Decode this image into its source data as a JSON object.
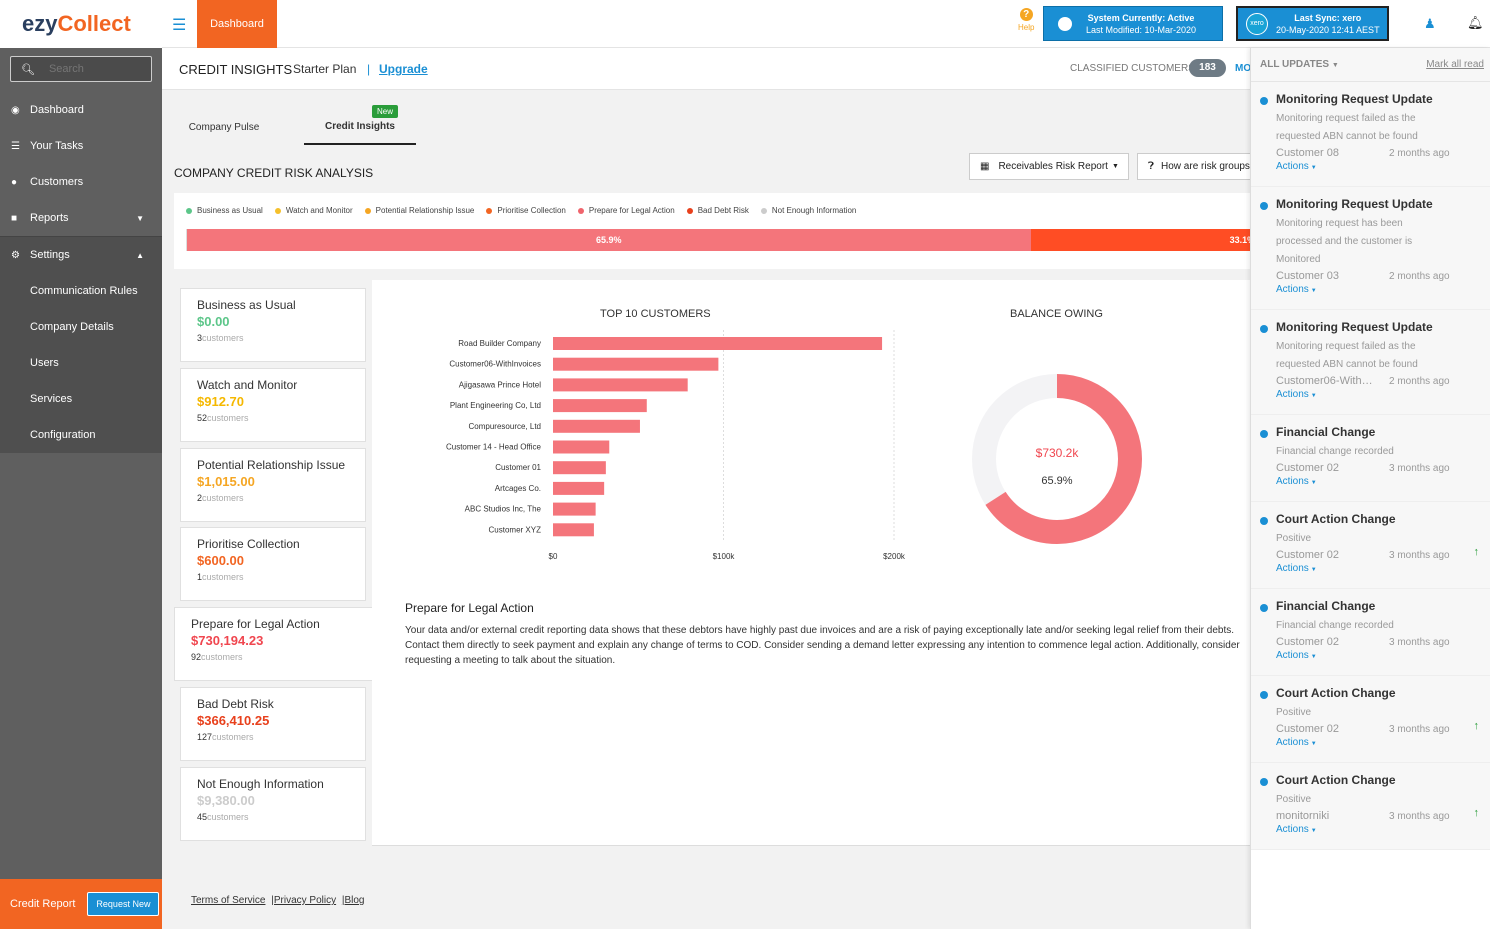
{
  "logo": {
    "part1": "ezy",
    "part2": "Collect"
  },
  "search": {
    "placeholder": "Search"
  },
  "sidebar": {
    "items": [
      {
        "label": "Dashboard",
        "icon": "dashboard-icon"
      },
      {
        "label": "Your Tasks",
        "icon": "tasks-icon"
      },
      {
        "label": "Customers",
        "icon": "customers-icon"
      },
      {
        "label": "Reports",
        "icon": "reports-icon"
      },
      {
        "label": "Settings",
        "icon": "gears-icon"
      }
    ],
    "settings_sub": [
      "Communication Rules",
      "Company Details",
      "Users",
      "Services",
      "Configuration"
    ],
    "credit_report": "Credit Report",
    "request_new": "Request New"
  },
  "topbar": {
    "dashboard_tab": "Dashboard",
    "help": "Help",
    "system_status": {
      "line1": "System Currently: Active",
      "line2": "Last Modified: 10-Mar-2020"
    },
    "sync_status": {
      "logo": "xero",
      "line1": "Last Sync: xero",
      "line2": "20-May-2020 12:41 AEST"
    }
  },
  "pagehead": {
    "title": "CREDIT INSIGHTS",
    "plan": "Starter Plan",
    "separator": "|",
    "upgrade": "Upgrade",
    "classified_label": "CLASSIFIED CUSTOMERS",
    "classified_count": "183",
    "more": "MO"
  },
  "tabs": {
    "pulse": "Company Pulse",
    "credit": "Credit Insights",
    "new_badge": "New"
  },
  "risk": {
    "title": "COMPANY CREDIT RISK ANALYSIS",
    "report_button": "Receivables Risk Report",
    "how_button": "How are risk groups",
    "legend": [
      {
        "label": "Business as Usual",
        "color": "#5cc689"
      },
      {
        "label": "Watch and Monitor",
        "color": "#f5c02b"
      },
      {
        "label": "Potential Relationship Issue",
        "color": "#f5a623"
      },
      {
        "label": "Prioritise Collection",
        "color": "#f26522"
      },
      {
        "label": "Prepare for Legal Action",
        "color": "#f0646c"
      },
      {
        "label": "Bad Debt Risk",
        "color": "#e8401c"
      },
      {
        "label": "Not Enough Information",
        "color": "#cccccc"
      }
    ],
    "bar": [
      {
        "label": "65.9%",
        "pct": 65.9,
        "color": "#f4757b"
      },
      {
        "label": "33.1%",
        "pct": 33.1,
        "color": "#ff4d24"
      }
    ]
  },
  "cards": [
    {
      "title": "Business as Usual",
      "value": "$0.00",
      "count": "3",
      "unit": "customers",
      "color": "#5cc689"
    },
    {
      "title": "Watch and Monitor",
      "value": "$912.70",
      "count": "52",
      "unit": "customers",
      "color": "#f5b800"
    },
    {
      "title": "Potential Relationship Issue",
      "value": "$1,015.00",
      "count": "2",
      "unit": "customers",
      "color": "#f5a623"
    },
    {
      "title": "Prioritise Collection",
      "value": "$600.00",
      "count": "1",
      "unit": "customers",
      "color": "#f26522"
    },
    {
      "title": "Prepare for Legal Action",
      "value": "$730,194.23",
      "count": "92",
      "unit": "customers",
      "color": "#f0464f"
    },
    {
      "title": "Bad Debt Risk",
      "value": "$366,410.25",
      "count": "127",
      "unit": "customers",
      "color": "#e8401c"
    },
    {
      "title": "Not Enough Information",
      "value": "$9,380.00",
      "count": "45",
      "unit": "customers",
      "color": "#cccccc"
    }
  ],
  "charts": {
    "top10_title": "TOP 10 CUSTOMERS",
    "balance_title": "BALANCE OWING",
    "balance_value": "$730.2k",
    "balance_pct": "65.9%"
  },
  "chart_data": [
    {
      "type": "bar",
      "orientation": "horizontal",
      "title": "TOP 10 CUSTOMERS",
      "categories": [
        "Road Builder Company",
        "Customer06-WithInvoices",
        "Ajigasawa Prince Hotel",
        "Plant Engineering Co, Ltd",
        "Compuresource, Ltd",
        "Customer 14 - Head Office",
        "Customer 01",
        "Artcages Co.",
        "ABC Studios Inc, The",
        "Customer XYZ"
      ],
      "values": [
        193000,
        97000,
        79000,
        55000,
        51000,
        33000,
        31000,
        30000,
        25000,
        24000
      ],
      "xticks": [
        "$0",
        "$100k",
        "$200k"
      ],
      "xlim": [
        0,
        200000
      ],
      "color": "#f4757b"
    },
    {
      "type": "pie",
      "title": "BALANCE OWING",
      "values": [
        65.9,
        34.1
      ],
      "colors": [
        "#f4757b",
        "#f3f3f5"
      ],
      "center_value": "$730.2k",
      "center_pct": "65.9%"
    }
  ],
  "legal": {
    "title": "Prepare for Legal Action",
    "desc": "Your data and/or external credit reporting data shows that these debtors have highly past due invoices and are a risk of paying exceptionally late and/or seeking legal relief from their debts. Contact them directly to seek payment and explain any change of terms to COD. Consider sending a demand letter expressing any intention to commence legal action. Additionally, consider requesting a meeting to talk about the situation."
  },
  "footer": {
    "terms": "Terms of Service",
    "privacy": "|Privacy Policy",
    "blog": "|Blog"
  },
  "updates": {
    "filter": "ALL UPDATES",
    "mark_all": "Mark all read",
    "items": [
      {
        "title": "Monitoring Request Update",
        "msg": "Monitoring request failed as the requested ABN cannot be found",
        "cust": "Customer 08",
        "ago": "2 months ago",
        "action": "Actions",
        "up": false
      },
      {
        "title": "Monitoring Request Update",
        "msg": "Monitoring request has been processed and the customer is Monitored",
        "cust": "Customer 03",
        "ago": "2 months ago",
        "action": "Actions",
        "up": false
      },
      {
        "title": "Monitoring Request Update",
        "msg": "Monitoring request failed as the requested ABN cannot be found",
        "cust": "Customer06-With…",
        "ago": "2 months ago",
        "action": "Actions",
        "up": false
      },
      {
        "title": "Financial Change",
        "msg": "Financial change recorded",
        "cust": "Customer 02",
        "ago": "3 months ago",
        "action": "Actions",
        "up": false
      },
      {
        "title": "Court Action Change",
        "msg": "Positive",
        "cust": "Customer 02",
        "ago": "3 months ago",
        "action": "Actions",
        "up": true
      },
      {
        "title": "Financial Change",
        "msg": "Financial change recorded",
        "cust": "Customer 02",
        "ago": "3 months ago",
        "action": "Actions",
        "up": false
      },
      {
        "title": "Court Action Change",
        "msg": "Positive",
        "cust": "Customer 02",
        "ago": "3 months ago",
        "action": "Actions",
        "up": true
      },
      {
        "title": "Court Action Change",
        "msg": "Positive",
        "cust": "monitorniki",
        "ago": "3 months ago",
        "action": "Actions",
        "up": true
      }
    ]
  }
}
